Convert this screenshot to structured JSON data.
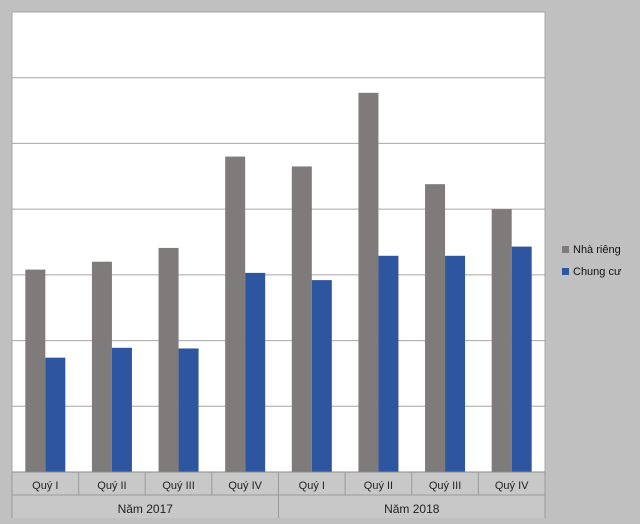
{
  "chart_data": {
    "type": "bar",
    "title": "",
    "xlabel": "",
    "ylabel": "",
    "ylim": [
      0,
      7
    ],
    "grid": true,
    "legend_position": "right",
    "categories": [
      "Quý I",
      "Quý II",
      "Quý III",
      "Quý IV",
      "Quý I",
      "Quý II",
      "Quý III",
      "Quý IV"
    ],
    "groups": [
      {
        "label": "Năm 2017",
        "count": 4
      },
      {
        "label": "Năm 2018",
        "count": 4
      }
    ],
    "series": [
      {
        "name": "Nhà riêng",
        "color": "#7f7b7b",
        "values": [
          3.08,
          3.2,
          3.41,
          4.8,
          4.65,
          5.77,
          4.38,
          4.0
        ]
      },
      {
        "name": "Chung cư",
        "color": "#2e55a0",
        "values": [
          1.74,
          1.89,
          1.88,
          3.03,
          2.92,
          3.29,
          3.29,
          3.43
        ]
      }
    ]
  }
}
